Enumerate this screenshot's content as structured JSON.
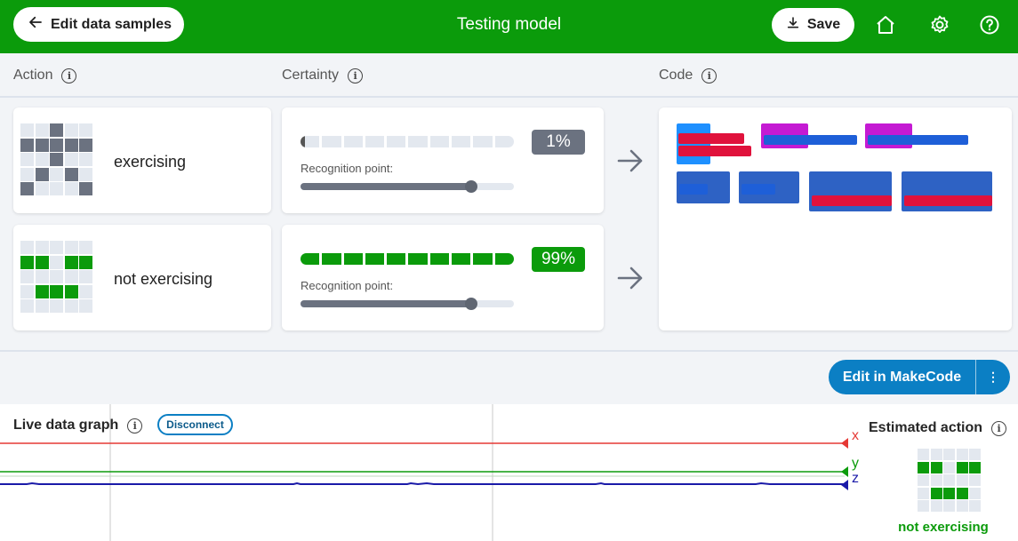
{
  "header": {
    "back_label": "Edit data samples",
    "title": "Testing model",
    "save_label": "Save"
  },
  "columns": {
    "action": "Action",
    "certainty": "Certainty",
    "code": "Code"
  },
  "actions": [
    {
      "name": "exercising",
      "led_color": "gray",
      "leds": [
        0,
        0,
        1,
        0,
        0,
        1,
        1,
        1,
        1,
        1,
        0,
        0,
        1,
        0,
        0,
        0,
        1,
        0,
        1,
        0,
        1,
        0,
        0,
        0,
        1
      ],
      "certainty_percent": 1,
      "certainty_label": "1%",
      "badge_color": "#6b7280",
      "recognition_label": "Recognition point:",
      "recognition_point": 0.8
    },
    {
      "name": "not exercising",
      "led_color": "green",
      "leds": [
        0,
        0,
        0,
        0,
        0,
        1,
        1,
        0,
        1,
        1,
        0,
        0,
        0,
        0,
        0,
        0,
        1,
        1,
        1,
        0,
        0,
        0,
        0,
        0,
        0
      ],
      "certainty_percent": 99,
      "certainty_label": "99%",
      "badge_color": "#0b9b0b",
      "recognition_label": "Recognition point:",
      "recognition_point": 0.8
    }
  ],
  "makecode": {
    "edit_label": "Edit in MakeCode",
    "more_label": "⋮"
  },
  "graph": {
    "title": "Live data graph",
    "disconnect_label": "Disconnect",
    "axes": [
      {
        "name": "x",
        "color": "#e53935"
      },
      {
        "name": "y",
        "color": "#0b9b0b"
      },
      {
        "name": "z",
        "color": "#1a1aa8"
      }
    ]
  },
  "estimated": {
    "title": "Estimated action",
    "label": "not exercising",
    "leds": [
      0,
      0,
      0,
      0,
      0,
      1,
      1,
      0,
      1,
      1,
      0,
      0,
      0,
      0,
      0,
      0,
      1,
      1,
      1,
      0,
      0,
      0,
      0,
      0,
      0
    ]
  },
  "colors": {
    "brand_green": "#0b9b0b",
    "makecode_blue": "#0b7fc4"
  }
}
